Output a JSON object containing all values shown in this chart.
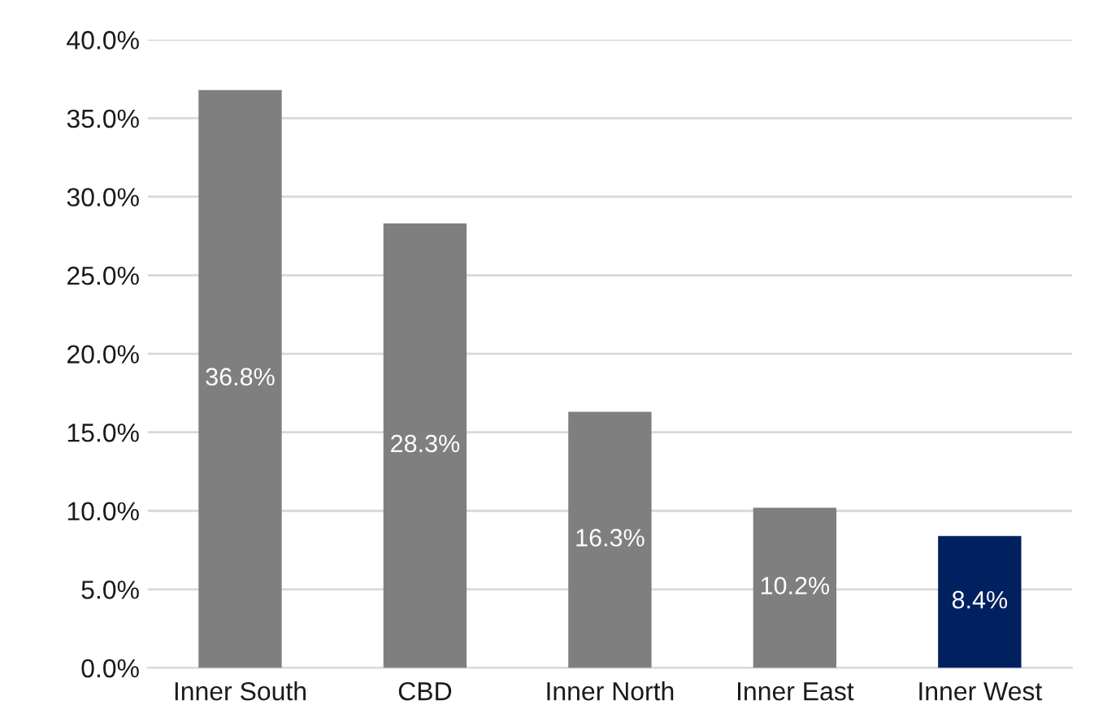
{
  "chart_data": {
    "type": "bar",
    "categories": [
      "Inner South",
      "CBD",
      "Inner North",
      "Inner East",
      "Inner West"
    ],
    "values": [
      36.8,
      28.3,
      16.3,
      10.2,
      8.4
    ],
    "colors": [
      "#7f7f7f",
      "#7f7f7f",
      "#7f7f7f",
      "#7f7f7f",
      "#002060"
    ],
    "value_labels": [
      "36.8%",
      "28.3%",
      "16.3%",
      "10.2%",
      "8.4%"
    ],
    "ylim": [
      0,
      40
    ],
    "yticks": [
      {
        "value": 0,
        "label": "0.0%"
      },
      {
        "value": 5,
        "label": "5.0%"
      },
      {
        "value": 10,
        "label": "10.0%"
      },
      {
        "value": 15,
        "label": "15.0%"
      },
      {
        "value": 20,
        "label": "20.0%"
      },
      {
        "value": 25,
        "label": "25.0%"
      },
      {
        "value": 30,
        "label": "30.0%"
      },
      {
        "value": 35,
        "label": "35.0%"
      },
      {
        "value": 40,
        "label": "40.0%"
      }
    ],
    "grid": "y"
  }
}
